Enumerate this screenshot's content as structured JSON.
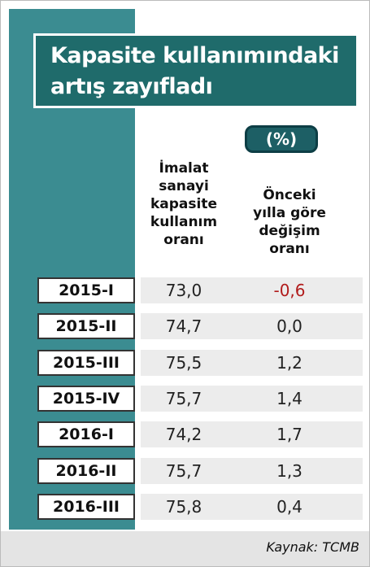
{
  "header": {
    "title": [
      "Kapasite kullanımındaki",
      "artış zayıfladı"
    ]
  },
  "table": {
    "unit": "(%)",
    "columns": [
      [
        "İmalat",
        "sanayi",
        "kapasite",
        "kullanım",
        "oranı"
      ],
      [
        "Önceki",
        "yılla göre",
        "değişim",
        "oranı"
      ]
    ],
    "rows": [
      [
        "2015-I",
        "73,0",
        "-0,6"
      ],
      [
        "2015-II",
        "74,7",
        "0,0"
      ],
      [
        "2015-III",
        "75,5",
        "1,2"
      ],
      [
        "2015-IV",
        "75,7",
        "1,4"
      ],
      [
        "2016-I",
        "74,2",
        "1,7"
      ],
      [
        "2016-II",
        "75,7",
        "1,3"
      ],
      [
        "2016-III",
        "75,8",
        "0,4"
      ]
    ]
  },
  "source": "Kaynak: TCMB"
}
